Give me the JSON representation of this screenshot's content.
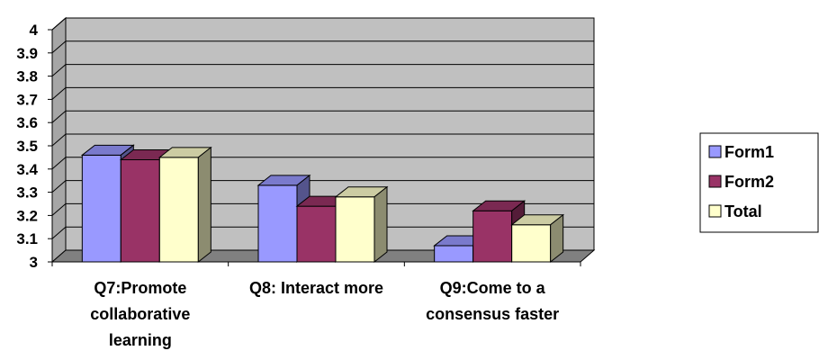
{
  "chart_data": {
    "type": "bar",
    "style": "3d-clustered-column",
    "categories": [
      [
        "Q7:Promote",
        "collaborative",
        "learning"
      ],
      [
        "Q8: Interact more"
      ],
      [
        "Q9:Come to a",
        "consensus faster"
      ]
    ],
    "series": [
      {
        "name": "Form1",
        "color": "#9999ff",
        "values": [
          3.46,
          3.33,
          3.07
        ]
      },
      {
        "name": "Form2",
        "color": "#993366",
        "values": [
          3.44,
          3.24,
          3.22
        ]
      },
      {
        "name": "Total",
        "color": "#ffffcc",
        "values": [
          3.45,
          3.28,
          3.16
        ]
      }
    ],
    "ylim": [
      3,
      4
    ],
    "yticks": [
      "3",
      "3.1",
      "3.2",
      "3.3",
      "3.4",
      "3.5",
      "3.6",
      "3.7",
      "3.8",
      "3.9",
      "4"
    ],
    "title": "",
    "xlabel": "",
    "ylabel": "",
    "grid": true,
    "wall_color": "#c0c0c0",
    "floor_color": "#808080",
    "legend_position": "right"
  }
}
